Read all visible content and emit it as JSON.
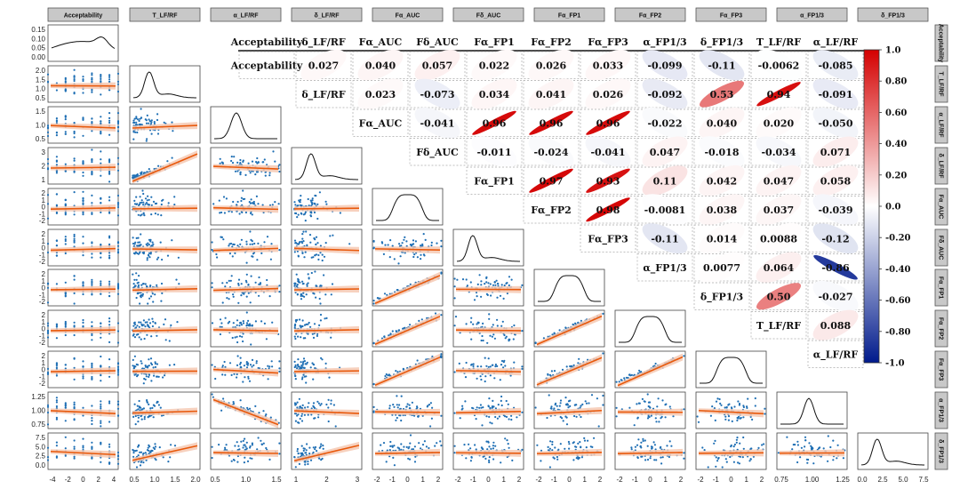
{
  "chart_data": [
    {
      "type": "scatter",
      "subtype": "pair-plot-lower-triangle",
      "variables": [
        "Acceptability",
        "T_LF/RF",
        "α_LF/RF",
        "δ_LF/RF",
        "Fα_AUC",
        "Fδ_AUC",
        "Fα_FP1",
        "Fα_FP2",
        "Fα_FP3",
        "α_FP1/3",
        "δ_FP1/3"
      ],
      "x_ticks": [
        [
          "-4",
          "-2",
          "0",
          "2",
          "4"
        ],
        [
          "0.5",
          "1.0",
          "1.5",
          "2.0"
        ],
        [
          "0.5",
          "1.0",
          "1.5"
        ],
        [
          "1",
          "2",
          "3"
        ],
        [
          "-2",
          "-1",
          "0",
          "1",
          "2"
        ],
        [
          "-2",
          "-1",
          "0",
          "1",
          "2"
        ],
        [
          "-2",
          "-1",
          "0",
          "1",
          "2"
        ],
        [
          "-2",
          "-1",
          "0",
          "1",
          "2"
        ],
        [
          "-2",
          "-1",
          "0",
          "1",
          "2"
        ],
        [
          "0.75",
          "1.00",
          "1.25"
        ],
        [
          "0.0",
          "2.5",
          "5.0",
          "7.5"
        ]
      ],
      "y_ticks": [
        [
          "0.15",
          "0.10",
          "0.05",
          "0.00"
        ],
        [
          "2.0",
          "1.5",
          "1.0",
          "0.5"
        ],
        [
          "1.5",
          "1.0",
          "0.5"
        ],
        [
          "3",
          "2",
          "1"
        ],
        [
          "2",
          "1",
          "0",
          "-1",
          "-2"
        ],
        [
          "2",
          "1",
          "0",
          "-1",
          "-2"
        ],
        [
          "2",
          "1",
          "0",
          "-1",
          "-2"
        ],
        [
          "2",
          "1",
          "0",
          "-1",
          "-2"
        ],
        [
          "2",
          "1",
          "0",
          "-1",
          "-2"
        ],
        [
          "1.25",
          "1.00",
          "0.75"
        ],
        [
          "7.5",
          "5.0",
          "2.5",
          "0.0"
        ]
      ],
      "x_ranges": [
        [
          -4.3,
          4.3
        ],
        [
          0.35,
          2.6
        ],
        [
          0.35,
          1.95
        ],
        [
          0.2,
          3.4
        ],
        [
          -2.6,
          2.6
        ],
        [
          -2.6,
          2.6
        ],
        [
          -2.6,
          2.6
        ],
        [
          -2.6,
          2.6
        ],
        [
          -2.6,
          2.6
        ],
        [
          0.55,
          1.55
        ],
        [
          -0.6,
          9.0
        ]
      ],
      "y_ranges": [
        [
          -0.01,
          0.19
        ],
        [
          0.3,
          2.4
        ],
        [
          0.35,
          1.85
        ],
        [
          0.2,
          3.4
        ],
        [
          -2.6,
          2.6
        ],
        [
          -2.6,
          2.6
        ],
        [
          -2.6,
          2.6
        ],
        [
          -2.6,
          2.6
        ],
        [
          -2.6,
          2.6
        ],
        [
          0.6,
          1.45
        ],
        [
          -0.6,
          9.0
        ]
      ],
      "diagonal": "density",
      "fit": "linear with confidence band",
      "point_color": "#1f6fb4",
      "fit_color": "#e8590c",
      "band_color": "#f6c9b3"
    },
    {
      "type": "heatmap",
      "subtype": "correlation-matrix-upper-triangle",
      "columns": [
        "Acceptability",
        "δ_LF/RF",
        "Fα_AUC",
        "Fδ_AUC",
        "Fα_FP1",
        "Fα_FP2",
        "Fα_FP3",
        "α_FP1/3",
        "δ_FP1/3",
        "T_LF/RF",
        "α_LF/RF"
      ],
      "rows": [
        "Acceptability",
        "δ_LF/RF",
        "Fα_AUC",
        "Fδ_AUC",
        "Fα_FP1",
        "Fα_FP2",
        "Fα_FP3",
        "α_FP1/3",
        "δ_FP1/3",
        "T_LF/RF",
        "α_LF/RF"
      ],
      "values": [
        [
          null,
          0.027,
          0.04,
          0.057,
          0.022,
          0.026,
          0.033,
          -0.099,
          -0.11,
          -0.0062,
          -0.085
        ],
        [
          null,
          null,
          0.023,
          -0.073,
          0.034,
          0.041,
          0.026,
          -0.092,
          0.53,
          0.94,
          -0.091
        ],
        [
          null,
          null,
          null,
          -0.041,
          0.96,
          0.96,
          0.96,
          -0.022,
          0.04,
          0.02,
          -0.05
        ],
        [
          null,
          null,
          null,
          null,
          -0.011,
          -0.024,
          -0.041,
          0.047,
          -0.018,
          -0.034,
          0.071
        ],
        [
          null,
          null,
          null,
          null,
          null,
          0.97,
          0.93,
          0.11,
          0.042,
          0.047,
          0.058
        ],
        [
          null,
          null,
          null,
          null,
          null,
          null,
          0.98,
          -0.0081,
          0.038,
          0.037,
          -0.039
        ],
        [
          null,
          null,
          null,
          null,
          null,
          null,
          null,
          -0.11,
          0.014,
          0.0088,
          -0.12
        ],
        [
          null,
          null,
          null,
          null,
          null,
          null,
          null,
          null,
          0.0077,
          0.064,
          -0.86
        ],
        [
          null,
          null,
          null,
          null,
          null,
          null,
          null,
          null,
          null,
          0.5,
          -0.027
        ],
        [
          null,
          null,
          null,
          null,
          null,
          null,
          null,
          null,
          null,
          null,
          0.088
        ],
        [
          null,
          null,
          null,
          null,
          null,
          null,
          null,
          null,
          null,
          null,
          null
        ]
      ],
      "labels": [
        [
          null,
          "0.027",
          "0.040",
          "0.057",
          "0.022",
          "0.026",
          "0.033",
          "-0.099",
          "-0.11",
          "-0.0062",
          "-0.085"
        ],
        [
          null,
          null,
          "0.023",
          "-0.073",
          "0.034",
          "0.041",
          "0.026",
          "-0.092",
          "0.53",
          "0.94",
          "-0.091"
        ],
        [
          null,
          null,
          null,
          "-0.041",
          "0.96",
          "0.96",
          "0.96",
          "-0.022",
          "0.040",
          "0.020",
          "-0.050"
        ],
        [
          null,
          null,
          null,
          null,
          "-0.011",
          "-0.024",
          "-0.041",
          "0.047",
          "-0.018",
          "-0.034",
          "0.071"
        ],
        [
          null,
          null,
          null,
          null,
          null,
          "0.97",
          "0.93",
          "0.11",
          "0.042",
          "0.047",
          "0.058"
        ],
        [
          null,
          null,
          null,
          null,
          null,
          null,
          "0.98",
          "-0.0081",
          "0.038",
          "0.037",
          "-0.039"
        ],
        [
          null,
          null,
          null,
          null,
          null,
          null,
          null,
          "-0.11",
          "0.014",
          "0.0088",
          "-0.12"
        ],
        [
          null,
          null,
          null,
          null,
          null,
          null,
          null,
          null,
          "0.0077",
          "0.064",
          "-0.86"
        ],
        [
          null,
          null,
          null,
          null,
          null,
          null,
          null,
          null,
          null,
          "0.50",
          "-0.027"
        ],
        [
          null,
          null,
          null,
          null,
          null,
          null,
          null,
          null,
          null,
          null,
          "0.088"
        ],
        [
          null,
          null,
          null,
          null,
          null,
          null,
          null,
          null,
          null,
          null,
          null
        ]
      ],
      "colorbar": {
        "range": [
          -1.0,
          1.0
        ],
        "ticks": [
          "1.0",
          "0.80",
          "0.60",
          "0.40",
          "0.20",
          "0.0",
          "-0.20",
          "-0.40",
          "-0.60",
          "-0.80",
          "-1.0"
        ],
        "low_color": "#001a8c",
        "mid_color": "#ffffff",
        "high_color": "#d40000"
      }
    }
  ]
}
